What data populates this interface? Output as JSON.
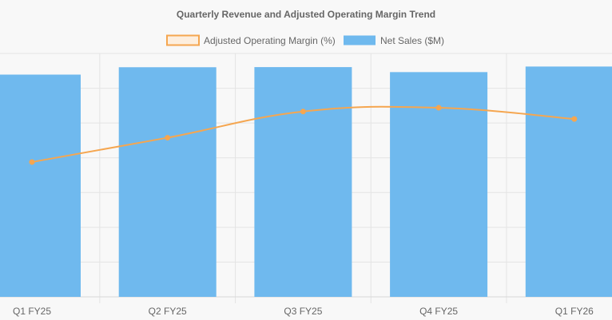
{
  "chart_data": {
    "type": "bar",
    "title": "Quarterly Revenue and Adjusted Operating Margin Trend",
    "categories": [
      "Q1 FY25",
      "Q2 FY25",
      "Q3 FY25",
      "Q4 FY25",
      "Q1 FY26"
    ],
    "series": [
      {
        "name": "Net Sales ($M)",
        "type": "bar",
        "color": "#6fb9ee",
        "values": [
          1598,
          1651,
          1652,
          1616,
          1656
        ]
      },
      {
        "name": "Adjusted Operating Margin (%)",
        "type": "line",
        "color": "#f5a650",
        "values": [
          19.2,
          20.5,
          21.9,
          22.1,
          21.5
        ]
      }
    ],
    "xlabel": "",
    "ylabel": "",
    "ylim_bars": [
      0,
      1750
    ],
    "ylim_line": [
      12,
      25
    ],
    "grid": true,
    "legend_position": "top-center"
  }
}
